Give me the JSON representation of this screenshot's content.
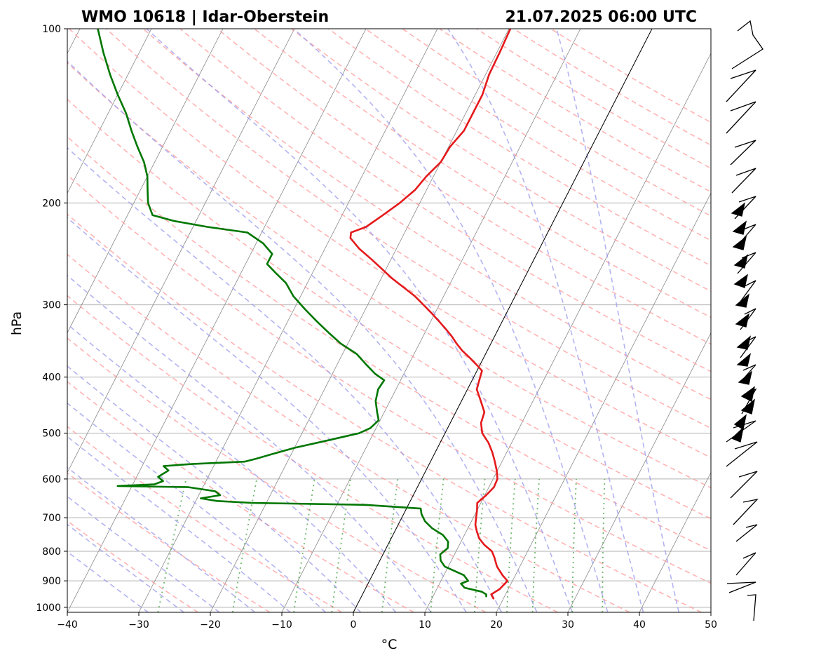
{
  "header": {
    "station": "WMO 10618 | Idar-Oberstein",
    "datetime": "21.07.2025 06:00 UTC"
  },
  "chart_data": {
    "type": "line",
    "chart_kind": "skew-T log-P diagram",
    "xlabel": "°C",
    "ylabel": "hPa",
    "xlim": [
      -40,
      50
    ],
    "ylim": [
      1020,
      100
    ],
    "y_scale": "log",
    "x_ticks": [
      -40,
      -30,
      -20,
      -10,
      0,
      10,
      20,
      30,
      40,
      50
    ],
    "x_tick_labels": [
      "−40",
      "−30",
      "−20",
      "−10",
      "0",
      "10",
      "20",
      "30",
      "40",
      "50"
    ],
    "y_ticks": [
      1000,
      900,
      800,
      700,
      600,
      500,
      400,
      300,
      200,
      100
    ],
    "y_tick_labels": [
      "1000",
      "900",
      "800",
      "700",
      "600",
      "500",
      "400",
      "300",
      "200",
      "100"
    ],
    "grid": true,
    "colors": {
      "temperature": "#e41a1c",
      "dewpoint": "#007700",
      "dry_adiabats": "#ff9999",
      "moist_adiabats": "#9999ee",
      "mixing_ratio": "#55aa55",
      "isotherms": "#888888",
      "grid": "#b0b0b0"
    },
    "series": [
      {
        "id": "temperature",
        "points": [
          [
            968,
            18.7
          ],
          [
            950,
            18.0
          ],
          [
            930,
            18.8
          ],
          [
            900,
            19.3
          ],
          [
            880,
            18.2
          ],
          [
            850,
            16.8
          ],
          [
            820,
            15.8
          ],
          [
            800,
            15.0
          ],
          [
            780,
            13.5
          ],
          [
            760,
            12.3
          ],
          [
            740,
            11.5
          ],
          [
            720,
            10.8
          ],
          [
            700,
            10.4
          ],
          [
            680,
            10.0
          ],
          [
            660,
            9.5
          ],
          [
            640,
            10.2
          ],
          [
            620,
            10.7
          ],
          [
            600,
            10.6
          ],
          [
            580,
            9.9
          ],
          [
            560,
            9.0
          ],
          [
            540,
            8.0
          ],
          [
            520,
            6.8
          ],
          [
            500,
            5.2
          ],
          [
            480,
            4.3
          ],
          [
            460,
            4.0
          ],
          [
            440,
            2.7
          ],
          [
            420,
            1.3
          ],
          [
            400,
            0.9
          ],
          [
            390,
            0.7
          ],
          [
            380,
            -0.6
          ],
          [
            370,
            -2.0
          ],
          [
            360,
            -3.5
          ],
          [
            350,
            -4.8
          ],
          [
            340,
            -6.0
          ],
          [
            330,
            -7.4
          ],
          [
            320,
            -8.9
          ],
          [
            310,
            -10.5
          ],
          [
            300,
            -12.2
          ],
          [
            290,
            -14.0
          ],
          [
            280,
            -16.2
          ],
          [
            270,
            -18.5
          ],
          [
            260,
            -20.6
          ],
          [
            250,
            -22.8
          ],
          [
            240,
            -25.2
          ],
          [
            230,
            -27.2
          ],
          [
            225,
            -27.5
          ],
          [
            220,
            -25.8
          ],
          [
            210,
            -24.3
          ],
          [
            200,
            -22.8
          ],
          [
            190,
            -21.6
          ],
          [
            180,
            -21.0
          ],
          [
            170,
            -20.0
          ],
          [
            160,
            -19.8
          ],
          [
            150,
            -19.0
          ],
          [
            140,
            -19.0
          ],
          [
            130,
            -19.0
          ],
          [
            120,
            -19.5
          ],
          [
            110,
            -19.6
          ],
          [
            100,
            -19.8
          ]
        ]
      },
      {
        "id": "dewpoint",
        "points": [
          [
            960,
            17.5
          ],
          [
            950,
            17.3
          ],
          [
            940,
            16.5
          ],
          [
            925,
            13.8
          ],
          [
            910,
            13.0
          ],
          [
            900,
            13.8
          ],
          [
            880,
            12.8
          ],
          [
            850,
            9.5
          ],
          [
            830,
            8.5
          ],
          [
            810,
            8.0
          ],
          [
            790,
            8.6
          ],
          [
            770,
            8.2
          ],
          [
            750,
            7.0
          ],
          [
            730,
            5.0
          ],
          [
            710,
            3.5
          ],
          [
            690,
            2.5
          ],
          [
            675,
            2.0
          ],
          [
            665,
            -6.0
          ],
          [
            660,
            -22.0
          ],
          [
            655,
            -27.0
          ],
          [
            648,
            -29.5
          ],
          [
            640,
            -27.0
          ],
          [
            630,
            -28.0
          ],
          [
            620,
            -32.0
          ],
          [
            617,
            -42.0
          ],
          [
            613,
            -37.0
          ],
          [
            605,
            -36.0
          ],
          [
            595,
            -37.0
          ],
          [
            580,
            -36.0
          ],
          [
            570,
            -37.0
          ],
          [
            565,
            -33.0
          ],
          [
            560,
            -26.0
          ],
          [
            553,
            -24.5
          ],
          [
            545,
            -23.0
          ],
          [
            530,
            -20.0
          ],
          [
            515,
            -16.0
          ],
          [
            500,
            -12.0
          ],
          [
            490,
            -10.8
          ],
          [
            475,
            -10.2
          ],
          [
            460,
            -11.0
          ],
          [
            440,
            -12.0
          ],
          [
            420,
            -12.5
          ],
          [
            405,
            -12.3
          ],
          [
            395,
            -14.0
          ],
          [
            380,
            -16.0
          ],
          [
            365,
            -18.0
          ],
          [
            350,
            -21.0
          ],
          [
            335,
            -23.5
          ],
          [
            320,
            -26.0
          ],
          [
            305,
            -28.5
          ],
          [
            290,
            -31.0
          ],
          [
            275,
            -33.0
          ],
          [
            265,
            -35.0
          ],
          [
            255,
            -37.0
          ],
          [
            245,
            -37.0
          ],
          [
            235,
            -39.0
          ],
          [
            225,
            -42.0
          ],
          [
            220,
            -48.0
          ],
          [
            215,
            -53.0
          ],
          [
            210,
            -56.5
          ],
          [
            200,
            -58.0
          ],
          [
            190,
            -59.0
          ],
          [
            180,
            -60.0
          ],
          [
            170,
            -61.5
          ],
          [
            160,
            -63.5
          ],
          [
            150,
            -65.5
          ],
          [
            140,
            -67.5
          ],
          [
            130,
            -70.0
          ],
          [
            120,
            -72.5
          ],
          [
            110,
            -75.0
          ],
          [
            100,
            -77.5
          ]
        ]
      }
    ]
  }
}
